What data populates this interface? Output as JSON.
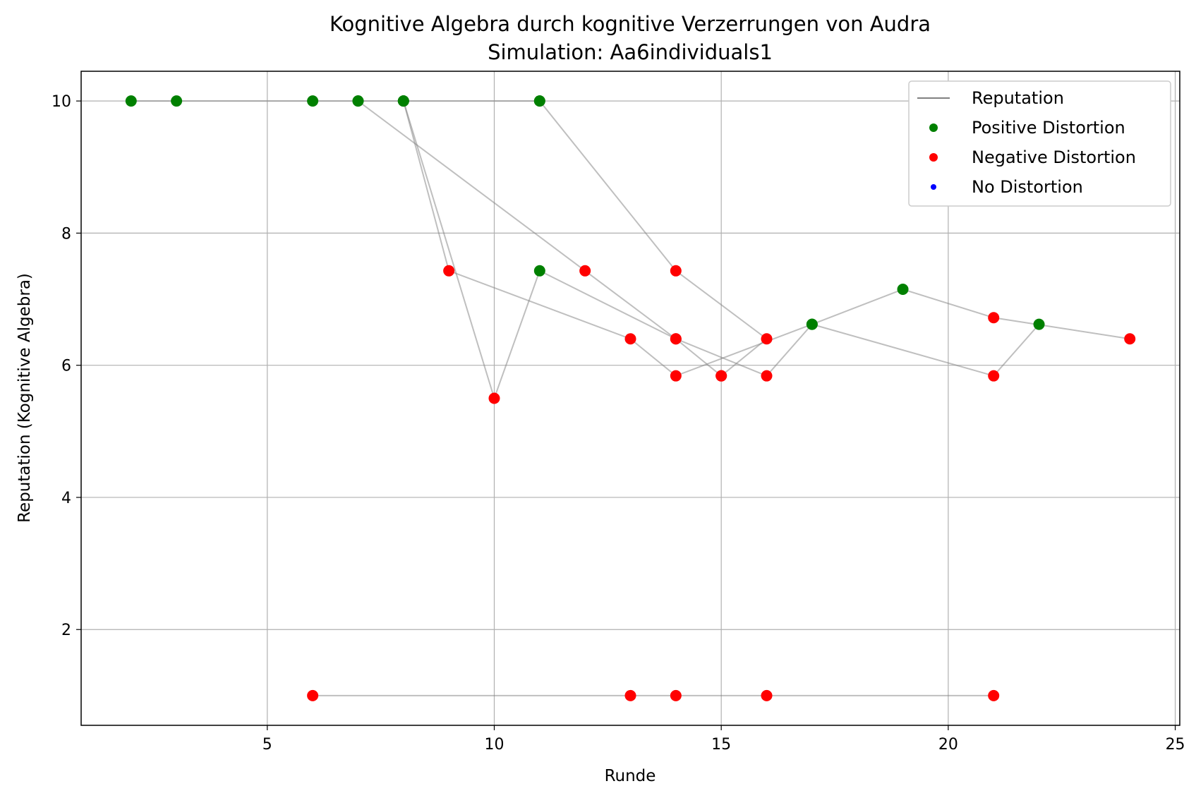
{
  "chart_data": {
    "type": "line",
    "title": "Kognitive Algebra durch kognitive Verzerrungen von Audra",
    "subtitle": "Simulation: Aa6individuals1",
    "xlabel": "Runde",
    "ylabel": "Reputation (Kognitive Algebra)",
    "xlim": [
      0.9,
      25.1
    ],
    "ylim": [
      0.55,
      10.45
    ],
    "xticks": [
      5,
      10,
      15,
      20,
      25
    ],
    "yticks": [
      2,
      4,
      6,
      8,
      10
    ],
    "grid": true,
    "legend_position": "top-right",
    "line_color": "#808080",
    "legend": [
      {
        "label": "Reputation",
        "kind": "line",
        "color": "#808080"
      },
      {
        "label": "Positive Distortion",
        "kind": "marker",
        "color": "#008000"
      },
      {
        "label": "Negative Distortion",
        "kind": "marker",
        "color": "#ff0000"
      },
      {
        "label": "No Distortion",
        "kind": "marker",
        "color": "#0000ff"
      }
    ],
    "colors": {
      "positive": "#008000",
      "negative": "#ff0000",
      "none": "#0000ff"
    },
    "series": [
      {
        "points": [
          {
            "x": 2,
            "y": 10,
            "d": "positive"
          },
          {
            "x": 3,
            "y": 10,
            "d": "positive"
          },
          {
            "x": 6,
            "y": 10,
            "d": "positive"
          },
          {
            "x": 7,
            "y": 10,
            "d": "positive"
          },
          {
            "x": 8,
            "y": 10,
            "d": "positive"
          },
          {
            "x": 11,
            "y": 10,
            "d": "positive"
          }
        ]
      },
      {
        "points": [
          {
            "x": 7,
            "y": 10,
            "d": "positive"
          },
          {
            "x": 12,
            "y": 7.43,
            "d": "negative"
          },
          {
            "x": 14,
            "y": 6.4,
            "d": "negative"
          },
          {
            "x": 15,
            "y": 5.84,
            "d": "negative"
          }
        ]
      },
      {
        "points": [
          {
            "x": 8,
            "y": 10,
            "d": "positive"
          },
          {
            "x": 9,
            "y": 7.43,
            "d": "negative"
          },
          {
            "x": 13,
            "y": 6.4,
            "d": "negative"
          },
          {
            "x": 14,
            "y": 5.84,
            "d": "negative"
          },
          {
            "x": 17,
            "y": 6.62,
            "d": "positive"
          },
          {
            "x": 19,
            "y": 7.15,
            "d": "positive"
          },
          {
            "x": 21,
            "y": 6.72,
            "d": "negative"
          },
          {
            "x": 24,
            "y": 6.4,
            "d": "negative"
          }
        ]
      },
      {
        "points": [
          {
            "x": 8,
            "y": 10,
            "d": "positive"
          },
          {
            "x": 10,
            "y": 5.5,
            "d": "negative"
          },
          {
            "x": 11,
            "y": 7.43,
            "d": "positive"
          },
          {
            "x": 14,
            "y": 6.4,
            "d": "negative"
          },
          {
            "x": 16,
            "y": 5.84,
            "d": "negative"
          },
          {
            "x": 17,
            "y": 6.62,
            "d": "positive"
          },
          {
            "x": 21,
            "y": 5.84,
            "d": "negative"
          },
          {
            "x": 22,
            "y": 6.62,
            "d": "positive"
          }
        ]
      },
      {
        "points": [
          {
            "x": 11,
            "y": 10,
            "d": "positive"
          },
          {
            "x": 14,
            "y": 7.43,
            "d": "negative"
          },
          {
            "x": 16,
            "y": 6.4,
            "d": "negative"
          },
          {
            "x": 15,
            "y": 5.84,
            "d": "negative"
          }
        ]
      },
      {
        "points": [
          {
            "x": 6,
            "y": 1,
            "d": "negative"
          },
          {
            "x": 13,
            "y": 1,
            "d": "negative"
          },
          {
            "x": 14,
            "y": 1,
            "d": "negative"
          },
          {
            "x": 16,
            "y": 1,
            "d": "negative"
          },
          {
            "x": 21,
            "y": 1,
            "d": "negative"
          }
        ]
      }
    ]
  }
}
